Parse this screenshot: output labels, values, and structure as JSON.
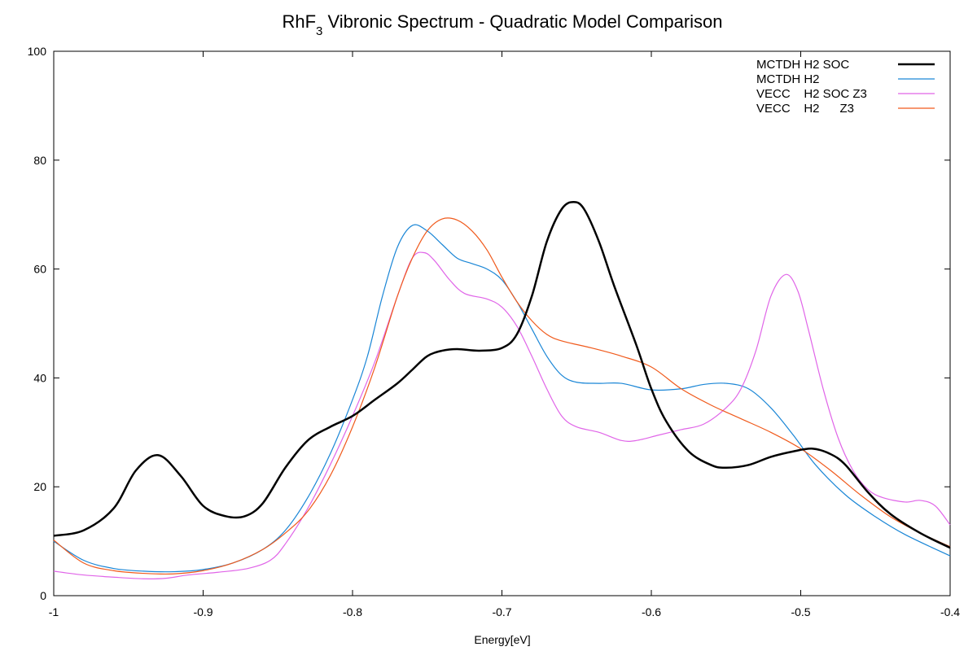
{
  "chart_data": {
    "type": "line",
    "title_main": "RhF",
    "title_sub": "3",
    "title_rest": " Vibronic Spectrum - Quadratic Model Comparison",
    "xlabel": "Energy[eV]",
    "ylabel": "",
    "xlim": [
      -1,
      -0.4
    ],
    "ylim": [
      0,
      100
    ],
    "xticks": [
      {
        "value": -1,
        "label": "-1"
      },
      {
        "value": -0.9,
        "label": "-0.9"
      },
      {
        "value": -0.8,
        "label": "-0.8"
      },
      {
        "value": -0.7,
        "label": "-0.7"
      },
      {
        "value": -0.6,
        "label": "-0.6"
      },
      {
        "value": -0.5,
        "label": "-0.5"
      },
      {
        "value": -0.4,
        "label": "-0.4"
      }
    ],
    "yticks": [
      {
        "value": 0,
        "label": "0"
      },
      {
        "value": 20,
        "label": "20"
      },
      {
        "value": 40,
        "label": "40"
      },
      {
        "value": 60,
        "label": "60"
      },
      {
        "value": 80,
        "label": "80"
      },
      {
        "value": 100,
        "label": "100"
      }
    ],
    "grid": false,
    "legend_position": "top-right",
    "series": [
      {
        "name": "MCTDH H2 SOC",
        "color": "#000000",
        "width": 2.5,
        "points": [
          [
            -1.0,
            11.0
          ],
          [
            -0.98,
            12.0
          ],
          [
            -0.96,
            16.0
          ],
          [
            -0.945,
            23.0
          ],
          [
            -0.93,
            25.8
          ],
          [
            -0.915,
            22.0
          ],
          [
            -0.9,
            16.5
          ],
          [
            -0.885,
            14.6
          ],
          [
            -0.872,
            14.6
          ],
          [
            -0.86,
            17.0
          ],
          [
            -0.845,
            23.5
          ],
          [
            -0.83,
            28.5
          ],
          [
            -0.815,
            31.0
          ],
          [
            -0.8,
            33.0
          ],
          [
            -0.785,
            36.0
          ],
          [
            -0.77,
            39.0
          ],
          [
            -0.76,
            41.5
          ],
          [
            -0.75,
            44.0
          ],
          [
            -0.74,
            45.0
          ],
          [
            -0.73,
            45.3
          ],
          [
            -0.715,
            45.0
          ],
          [
            -0.7,
            45.5
          ],
          [
            -0.69,
            48.0
          ],
          [
            -0.68,
            55.0
          ],
          [
            -0.67,
            65.0
          ],
          [
            -0.66,
            71.0
          ],
          [
            -0.652,
            72.3
          ],
          [
            -0.645,
            71.0
          ],
          [
            -0.635,
            65.0
          ],
          [
            -0.625,
            57.0
          ],
          [
            -0.61,
            46.0
          ],
          [
            -0.6,
            38.0
          ],
          [
            -0.59,
            32.0
          ],
          [
            -0.575,
            26.5
          ],
          [
            -0.56,
            24.0
          ],
          [
            -0.55,
            23.5
          ],
          [
            -0.535,
            24.0
          ],
          [
            -0.52,
            25.5
          ],
          [
            -0.505,
            26.5
          ],
          [
            -0.492,
            27.0
          ],
          [
            -0.48,
            26.0
          ],
          [
            -0.47,
            24.0
          ],
          [
            -0.455,
            19.0
          ],
          [
            -0.44,
            15.0
          ],
          [
            -0.42,
            11.5
          ],
          [
            -0.4,
            8.8
          ]
        ]
      },
      {
        "name": "MCTDH H2",
        "color": "#1a86d6",
        "width": 1.2,
        "points": [
          [
            -1.0,
            10.0
          ],
          [
            -0.98,
            6.5
          ],
          [
            -0.96,
            5.0
          ],
          [
            -0.94,
            4.5
          ],
          [
            -0.92,
            4.4
          ],
          [
            -0.9,
            4.8
          ],
          [
            -0.88,
            6.0
          ],
          [
            -0.86,
            8.5
          ],
          [
            -0.845,
            12.0
          ],
          [
            -0.83,
            18.0
          ],
          [
            -0.815,
            26.0
          ],
          [
            -0.8,
            36.0
          ],
          [
            -0.79,
            44.0
          ],
          [
            -0.78,
            55.0
          ],
          [
            -0.77,
            64.0
          ],
          [
            -0.76,
            68.0
          ],
          [
            -0.75,
            67.0
          ],
          [
            -0.74,
            64.5
          ],
          [
            -0.73,
            62.0
          ],
          [
            -0.72,
            61.0
          ],
          [
            -0.71,
            60.0
          ],
          [
            -0.7,
            58.0
          ],
          [
            -0.69,
            54.0
          ],
          [
            -0.68,
            49.0
          ],
          [
            -0.67,
            44.0
          ],
          [
            -0.66,
            40.5
          ],
          [
            -0.65,
            39.2
          ],
          [
            -0.635,
            39.0
          ],
          [
            -0.62,
            39.0
          ],
          [
            -0.6,
            37.8
          ],
          [
            -0.58,
            38.0
          ],
          [
            -0.565,
            38.8
          ],
          [
            -0.55,
            39.0
          ],
          [
            -0.535,
            38.0
          ],
          [
            -0.52,
            34.5
          ],
          [
            -0.505,
            29.5
          ],
          [
            -0.49,
            24.0
          ],
          [
            -0.47,
            18.5
          ],
          [
            -0.45,
            14.5
          ],
          [
            -0.43,
            11.2
          ],
          [
            -0.4,
            7.3
          ]
        ]
      },
      {
        "name": "VECC    H2 SOC Z3",
        "color": "#e065e8",
        "width": 1.2,
        "points": [
          [
            -1.0,
            4.5
          ],
          [
            -0.98,
            3.8
          ],
          [
            -0.96,
            3.4
          ],
          [
            -0.94,
            3.1
          ],
          [
            -0.925,
            3.2
          ],
          [
            -0.91,
            3.8
          ],
          [
            -0.89,
            4.3
          ],
          [
            -0.87,
            5.0
          ],
          [
            -0.855,
            6.5
          ],
          [
            -0.845,
            9.5
          ],
          [
            -0.83,
            16.0
          ],
          [
            -0.815,
            24.0
          ],
          [
            -0.8,
            33.0
          ],
          [
            -0.785,
            43.0
          ],
          [
            -0.77,
            55.0
          ],
          [
            -0.76,
            62.0
          ],
          [
            -0.752,
            63.0
          ],
          [
            -0.745,
            61.5
          ],
          [
            -0.735,
            58.0
          ],
          [
            -0.725,
            55.5
          ],
          [
            -0.71,
            54.5
          ],
          [
            -0.7,
            53.0
          ],
          [
            -0.69,
            49.5
          ],
          [
            -0.68,
            44.0
          ],
          [
            -0.67,
            38.0
          ],
          [
            -0.66,
            33.0
          ],
          [
            -0.65,
            31.0
          ],
          [
            -0.635,
            30.0
          ],
          [
            -0.62,
            28.5
          ],
          [
            -0.61,
            28.5
          ],
          [
            -0.595,
            29.5
          ],
          [
            -0.58,
            30.5
          ],
          [
            -0.565,
            31.5
          ],
          [
            -0.55,
            34.5
          ],
          [
            -0.54,
            38.0
          ],
          [
            -0.53,
            45.0
          ],
          [
            -0.52,
            55.0
          ],
          [
            -0.51,
            59.0
          ],
          [
            -0.502,
            56.0
          ],
          [
            -0.495,
            49.0
          ],
          [
            -0.485,
            38.0
          ],
          [
            -0.475,
            29.0
          ],
          [
            -0.465,
            23.0
          ],
          [
            -0.455,
            19.5
          ],
          [
            -0.445,
            18.0
          ],
          [
            -0.43,
            17.2
          ],
          [
            -0.42,
            17.5
          ],
          [
            -0.41,
            16.5
          ],
          [
            -0.4,
            13.0
          ]
        ]
      },
      {
        "name": "VECC    H2      Z3",
        "color": "#f05a1c",
        "width": 1.2,
        "points": [
          [
            -1.0,
            10.2
          ],
          [
            -0.98,
            6.0
          ],
          [
            -0.96,
            4.6
          ],
          [
            -0.94,
            4.1
          ],
          [
            -0.92,
            4.0
          ],
          [
            -0.9,
            4.6
          ],
          [
            -0.88,
            6.0
          ],
          [
            -0.86,
            8.5
          ],
          [
            -0.845,
            11.5
          ],
          [
            -0.83,
            15.5
          ],
          [
            -0.815,
            22.0
          ],
          [
            -0.8,
            31.0
          ],
          [
            -0.785,
            42.0
          ],
          [
            -0.77,
            55.0
          ],
          [
            -0.76,
            62.0
          ],
          [
            -0.75,
            67.0
          ],
          [
            -0.74,
            69.2
          ],
          [
            -0.73,
            69.0
          ],
          [
            -0.72,
            67.0
          ],
          [
            -0.71,
            63.5
          ],
          [
            -0.7,
            58.5
          ],
          [
            -0.69,
            54.0
          ],
          [
            -0.68,
            50.5
          ],
          [
            -0.67,
            48.0
          ],
          [
            -0.66,
            46.8
          ],
          [
            -0.64,
            45.5
          ],
          [
            -0.62,
            44.0
          ],
          [
            -0.6,
            42.0
          ],
          [
            -0.58,
            38.0
          ],
          [
            -0.56,
            35.0
          ],
          [
            -0.54,
            32.5
          ],
          [
            -0.52,
            30.0
          ],
          [
            -0.5,
            27.0
          ],
          [
            -0.48,
            23.0
          ],
          [
            -0.46,
            18.5
          ],
          [
            -0.44,
            14.5
          ],
          [
            -0.42,
            11.5
          ],
          [
            -0.4,
            9.0
          ]
        ]
      }
    ]
  }
}
